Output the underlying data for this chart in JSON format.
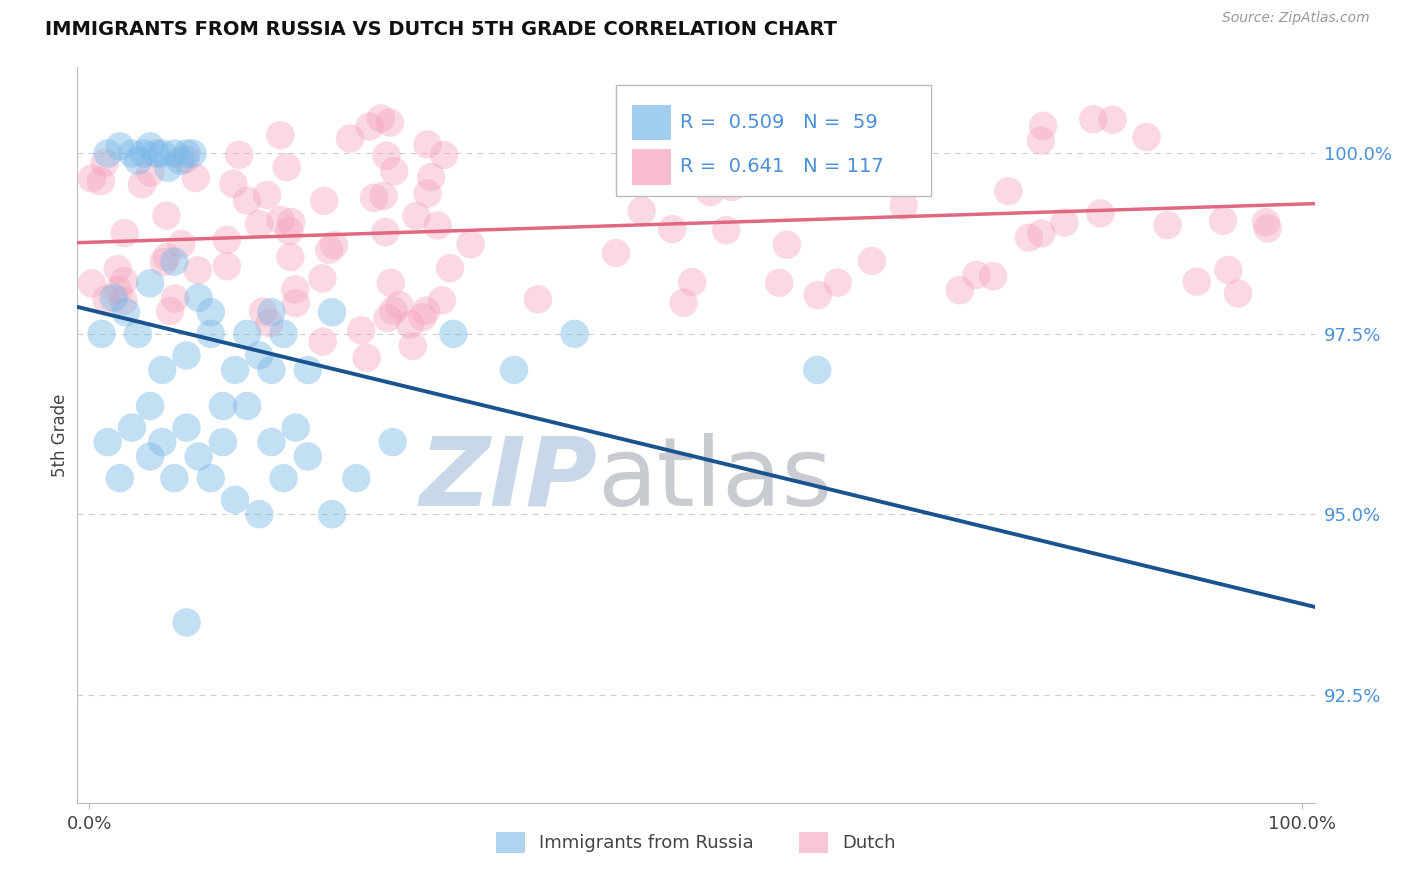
{
  "title": "IMMIGRANTS FROM RUSSIA VS DUTCH 5TH GRADE CORRELATION CHART",
  "source_text": "Source: ZipAtlas.com",
  "ylabel": "5th Grade",
  "ytick_labels": [
    "92.5%",
    "95.0%",
    "97.5%",
    "100.0%"
  ],
  "ytick_values": [
    92.5,
    95.0,
    97.5,
    100.0
  ],
  "xtick_labels": [
    "0.0%",
    "100.0%"
  ],
  "xtick_values": [
    0,
    100
  ],
  "legend_blue_R": "0.509",
  "legend_blue_N": "59",
  "legend_pink_R": "0.641",
  "legend_pink_N": "117",
  "legend_blue_label": "Immigrants from Russia",
  "legend_pink_label": "Dutch",
  "blue_color": "#7ab8e8",
  "pink_color": "#f4a0b8",
  "blue_line_color": "#1a5490",
  "pink_line_color": "#e06880",
  "watermark_zip": "ZIP",
  "watermark_atlas": "atlas",
  "watermark_zip_color": "#c8d8e8",
  "watermark_atlas_color": "#c8ccd0",
  "xlim_min": -1,
  "xlim_max": 101,
  "ylim_min": 91.0,
  "ylim_max": 101.2,
  "grid_color": "#cccccc",
  "background_color": "#ffffff",
  "title_fontsize": 14,
  "tick_fontsize": 13,
  "legend_fontsize": 14,
  "source_fontsize": 10,
  "ylabel_fontsize": 12
}
